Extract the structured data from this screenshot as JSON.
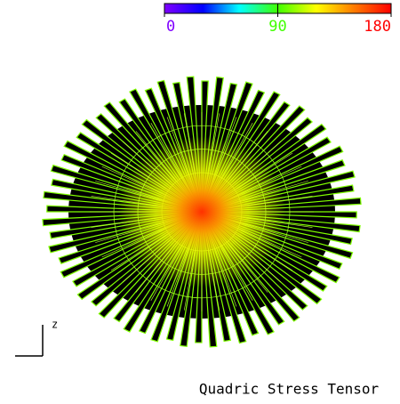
{
  "colorbar": {
    "ticks": [
      0,
      90,
      180
    ]
  },
  "axis_label": "z",
  "title": "Quadric Stress Tensor"
}
